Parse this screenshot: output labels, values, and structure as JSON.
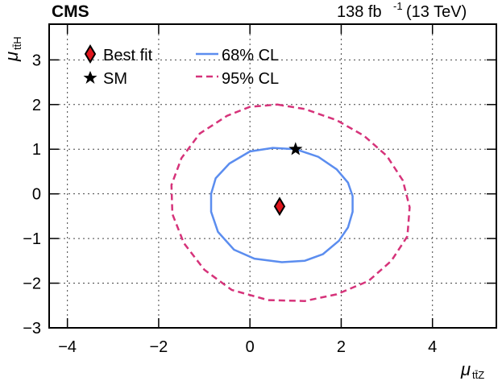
{
  "chart_data": {
    "type": "contour",
    "experiment_label": "CMS",
    "luminosity_label": {
      "value": "138 fb",
      "exponent": "-1",
      "energy": "(13 TeV)"
    },
    "xlabel": {
      "symbol": "μ",
      "subscript": "tt̄Z"
    },
    "ylabel": {
      "symbol": "μ",
      "subscript": "tt̄H"
    },
    "xlim": [
      -4.4,
      5.4
    ],
    "ylim": [
      -3,
      3.8
    ],
    "xticks": [
      -4,
      -2,
      0,
      2,
      4
    ],
    "yticks": [
      -3,
      -2,
      -1,
      0,
      1,
      2,
      3
    ],
    "tick_labels_x": [
      "−4",
      "−2",
      "0",
      "2",
      "4"
    ],
    "tick_labels_y": [
      "−3",
      "−2",
      "−1",
      "0",
      "1",
      "2",
      "3"
    ],
    "grid": true,
    "legend": [
      {
        "label": "Best fit",
        "marker": "diamond",
        "color": "#e0161d"
      },
      {
        "label": "SM",
        "marker": "star",
        "color": "#000000"
      },
      {
        "label": "68% CL",
        "line": "solid",
        "color": "#5b8def"
      },
      {
        "label": "95% CL",
        "line": "dashed",
        "color": "#d6337a"
      }
    ],
    "best_fit": {
      "x": 0.65,
      "y": -0.28
    },
    "sm_point": {
      "x": 1.0,
      "y": 1.0
    },
    "contour_68": [
      [
        0.5,
        1.03
      ],
      [
        1.0,
        1.0
      ],
      [
        1.5,
        0.83
      ],
      [
        1.9,
        0.55
      ],
      [
        2.15,
        0.25
      ],
      [
        2.25,
        -0.05
      ],
      [
        2.25,
        -0.4
      ],
      [
        2.15,
        -0.75
      ],
      [
        1.95,
        -1.05
      ],
      [
        1.6,
        -1.35
      ],
      [
        1.2,
        -1.5
      ],
      [
        0.7,
        -1.53
      ],
      [
        0.1,
        -1.45
      ],
      [
        -0.35,
        -1.25
      ],
      [
        -0.7,
        -0.85
      ],
      [
        -0.85,
        -0.4
      ],
      [
        -0.85,
        0.0
      ],
      [
        -0.75,
        0.35
      ],
      [
        -0.45,
        0.68
      ],
      [
        0.0,
        0.95
      ],
      [
        0.5,
        1.03
      ]
    ],
    "contour_95": [
      [
        0.6,
        2.0
      ],
      [
        1.2,
        1.9
      ],
      [
        1.9,
        1.65
      ],
      [
        2.5,
        1.3
      ],
      [
        3.0,
        0.85
      ],
      [
        3.35,
        0.3
      ],
      [
        3.5,
        -0.3
      ],
      [
        3.45,
        -0.95
      ],
      [
        3.1,
        -1.5
      ],
      [
        2.6,
        -1.95
      ],
      [
        1.9,
        -2.25
      ],
      [
        1.2,
        -2.4
      ],
      [
        0.4,
        -2.38
      ],
      [
        -0.4,
        -2.15
      ],
      [
        -1.0,
        -1.7
      ],
      [
        -1.45,
        -1.1
      ],
      [
        -1.7,
        -0.45
      ],
      [
        -1.72,
        0.2
      ],
      [
        -1.5,
        0.8
      ],
      [
        -1.1,
        1.35
      ],
      [
        -0.5,
        1.75
      ],
      [
        0.0,
        1.95
      ],
      [
        0.6,
        2.0
      ]
    ]
  }
}
